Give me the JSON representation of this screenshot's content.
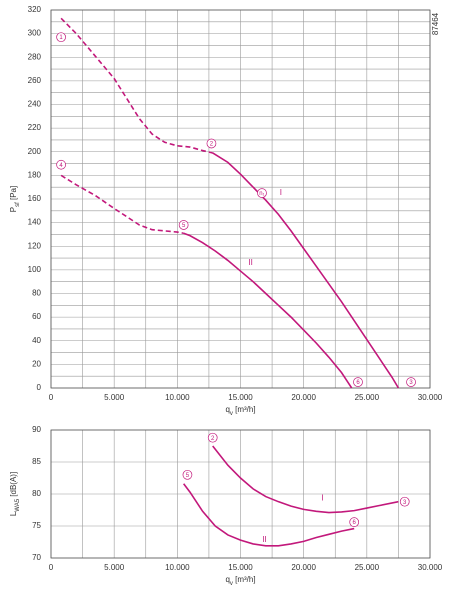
{
  "chart_data": [
    {
      "type": "line",
      "y_label": [
        "P",
        "sf",
        " [Pa]"
      ],
      "x_label": [
        "q",
        "v",
        " [m³/h]"
      ],
      "id_text": "87464",
      "xlim": [
        0,
        30000
      ],
      "xticks": [
        0,
        {
          "value": 5000,
          "label": "5.000"
        },
        {
          "value": 10000,
          "label": "10.000"
        },
        {
          "value": 15000,
          "label": "15.000"
        },
        {
          "value": 20000,
          "label": "20.000"
        },
        {
          "value": 25000,
          "label": "25.000"
        },
        {
          "value": 30000,
          "label": "30.000"
        }
      ],
      "xgrid": [
        2500,
        7500,
        12500,
        17500,
        22500,
        27500
      ],
      "ylim": [
        0,
        320
      ],
      "yticks": [
        0,
        20,
        40,
        60,
        80,
        100,
        120,
        140,
        160,
        180,
        200,
        220,
        240,
        260,
        280,
        300,
        320
      ],
      "ygrid": [
        10,
        30,
        50,
        70,
        90,
        110,
        130,
        150,
        170,
        190,
        210,
        230,
        250,
        270,
        290,
        310
      ],
      "grid": true,
      "series": [
        {
          "color": "#c2187b",
          "style": "dashed",
          "x": [
            800,
            2000,
            3500,
            5000,
            6000,
            7000,
            8000,
            9000,
            10000,
            11000,
            12000,
            12800
          ],
          "values": [
            313,
            300,
            281,
            262,
            245,
            228,
            215,
            208,
            205,
            204,
            201,
            199
          ]
        },
        {
          "color": "#c2187b",
          "style": "solid",
          "x": [
            12800,
            14000,
            15000,
            16000,
            17000,
            18000,
            19000,
            20000,
            21000,
            22000,
            23000,
            24000,
            25000,
            26000,
            27000,
            27500
          ],
          "values": [
            199,
            191,
            181,
            170,
            159,
            147,
            133,
            118,
            103,
            88,
            73,
            57,
            41,
            25,
            9,
            0
          ]
        },
        {
          "color": "#c2187b",
          "style": "dashed",
          "x": [
            800,
            2000,
            3500,
            5000,
            6000,
            7000,
            8000,
            9000,
            10000,
            10500
          ],
          "values": [
            180,
            172,
            163,
            152,
            145,
            138,
            134,
            133,
            132,
            131
          ]
        },
        {
          "color": "#c2187b",
          "style": "solid",
          "x": [
            10500,
            11000,
            12000,
            13000,
            14000,
            15000,
            16000,
            17000,
            18000,
            19000,
            20000,
            21000,
            22000,
            23000,
            23800
          ],
          "values": [
            131,
            129,
            123,
            116,
            108,
            99,
            90,
            80,
            70,
            60,
            49,
            38,
            26,
            13,
            0
          ]
        }
      ],
      "point_labels": [
        {
          "label": "1",
          "x": 800,
          "y": 297
        },
        {
          "label": "2",
          "x": 12700,
          "y": 207
        },
        {
          "label": "3",
          "x": 28500,
          "y": 5
        },
        {
          "label": "4",
          "x": 800,
          "y": 189
        },
        {
          "label": "5",
          "x": 10500,
          "y": 138
        },
        {
          "label": "6",
          "x": 24300,
          "y": 5
        },
        {
          "label": "n₁",
          "x": 16700,
          "y": 165
        }
      ],
      "annotations": [
        {
          "text": "I",
          "x": 18200,
          "y": 165
        },
        {
          "text": "II",
          "x": 15800,
          "y": 106
        }
      ]
    },
    {
      "type": "line",
      "y_label": [
        "L",
        "WA5",
        " [dB(A)]"
      ],
      "x_label": [
        "q",
        "v",
        " [m³/h]"
      ],
      "xlim": [
        0,
        30000
      ],
      "xticks": [
        0,
        {
          "value": 5000,
          "label": "5.000"
        },
        {
          "value": 10000,
          "label": "10.000"
        },
        {
          "value": 15000,
          "label": "15.000"
        },
        {
          "value": 20000,
          "label": "20.000"
        },
        {
          "value": 25000,
          "label": "25.000"
        },
        {
          "value": 30000,
          "label": "30.000"
        }
      ],
      "xgrid": [
        2500,
        7500,
        12500,
        17500,
        22500,
        27500
      ],
      "ylim": [
        70,
        90
      ],
      "yticks": [
        70,
        75,
        80,
        85,
        90
      ],
      "ygrid": [],
      "grid": true,
      "series": [
        {
          "color": "#c2187b",
          "style": "solid",
          "x": [
            12800,
            14000,
            15000,
            16000,
            17000,
            18000,
            19000,
            20000,
            21000,
            22000,
            23000,
            24000,
            25000,
            26000,
            27500
          ],
          "values": [
            87.5,
            84.5,
            82.5,
            80.8,
            79.6,
            78.8,
            78.1,
            77.6,
            77.3,
            77.1,
            77.2,
            77.4,
            77.8,
            78.2,
            78.8
          ]
        },
        {
          "color": "#c2187b",
          "style": "solid",
          "x": [
            10500,
            11000,
            12000,
            13000,
            14000,
            15000,
            16000,
            17000,
            18000,
            19000,
            20000,
            21000,
            22000,
            23000,
            24000
          ],
          "values": [
            81.6,
            80.3,
            77.3,
            75.0,
            73.6,
            72.8,
            72.2,
            71.9,
            71.9,
            72.2,
            72.6,
            73.2,
            73.7,
            74.2,
            74.6
          ]
        }
      ],
      "point_labels": [
        {
          "label": "2",
          "x": 12800,
          "y": 88.8
        },
        {
          "label": "3",
          "x": 28000,
          "y": 78.8
        },
        {
          "label": "5",
          "x": 10800,
          "y": 83
        },
        {
          "label": "6",
          "x": 24000,
          "y": 75.6
        }
      ],
      "annotations": [
        {
          "text": "I",
          "x": 21500,
          "y": 79.3
        },
        {
          "text": "II",
          "x": 16900,
          "y": 72.8
        }
      ]
    }
  ]
}
